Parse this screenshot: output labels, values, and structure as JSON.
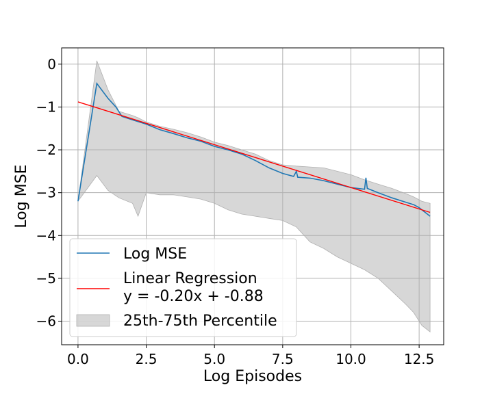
{
  "chart_data": {
    "type": "line",
    "xlabel": "Log Episodes",
    "ylabel": "Log MSE",
    "xlim": [
      -0.6,
      13.4
    ],
    "ylim": [
      -6.55,
      0.38
    ],
    "xticks": [
      0.0,
      2.5,
      5.0,
      7.5,
      10.0,
      12.5
    ],
    "xtick_labels": [
      "0.0",
      "2.5",
      "5.0",
      "7.5",
      "10.0",
      "12.5"
    ],
    "yticks": [
      0,
      -1,
      -2,
      -3,
      -4,
      -5,
      -6
    ],
    "ytick_labels": [
      "0",
      "−1",
      "−2",
      "−3",
      "−4",
      "−5",
      "−6"
    ],
    "grid": true,
    "legend_position": "lower-left",
    "series": [
      {
        "name": "Log MSE",
        "color": "#1f77b4",
        "x": [
          0.0,
          0.69,
          1.1,
          1.39,
          1.61,
          2.0,
          2.5,
          3.0,
          3.5,
          4.0,
          4.5,
          5.0,
          5.5,
          6.0,
          6.5,
          7.0,
          7.5,
          7.9,
          8.0,
          8.05,
          8.5,
          9.0,
          9.5,
          10.0,
          10.5,
          10.55,
          10.6,
          11.0,
          11.5,
          12.0,
          12.3,
          12.5,
          12.9
        ],
        "y": [
          -3.2,
          -0.45,
          -0.8,
          -1.0,
          -1.22,
          -1.3,
          -1.4,
          -1.53,
          -1.62,
          -1.72,
          -1.8,
          -1.92,
          -2.0,
          -2.1,
          -2.25,
          -2.42,
          -2.55,
          -2.62,
          -2.5,
          -2.64,
          -2.66,
          -2.72,
          -2.8,
          -2.88,
          -2.92,
          -2.65,
          -2.9,
          -3.0,
          -3.12,
          -3.22,
          -3.28,
          -3.35,
          -3.55
        ]
      },
      {
        "name": "Linear Regression\ny = -0.20x + -0.88",
        "color": "#ff0000",
        "slope": -0.2,
        "intercept": -0.88,
        "x_range": [
          0.0,
          12.9
        ]
      }
    ],
    "band": {
      "name": "25th-75th Percentile",
      "color": "#b0b0b0",
      "x": [
        0.0,
        0.69,
        1.1,
        1.5,
        2.0,
        2.2,
        2.5,
        3.0,
        3.5,
        4.0,
        4.5,
        5.0,
        5.5,
        6.0,
        6.5,
        7.0,
        7.5,
        8.0,
        8.5,
        9.0,
        9.5,
        10.0,
        10.5,
        11.0,
        11.5,
        12.0,
        12.3,
        12.6,
        12.9
      ],
      "upper": [
        -3.2,
        0.08,
        -0.6,
        -1.1,
        -1.2,
        -1.25,
        -1.35,
        -1.45,
        -1.52,
        -1.6,
        -1.7,
        -1.82,
        -1.9,
        -2.0,
        -2.1,
        -2.25,
        -2.35,
        -2.38,
        -2.4,
        -2.42,
        -2.5,
        -2.58,
        -2.7,
        -2.8,
        -2.9,
        -3.02,
        -3.1,
        -3.2,
        -3.25
      ],
      "lower": [
        -3.2,
        -2.6,
        -2.95,
        -3.12,
        -3.25,
        -3.55,
        -3.0,
        -3.05,
        -3.05,
        -3.1,
        -3.15,
        -3.25,
        -3.4,
        -3.5,
        -3.55,
        -3.6,
        -3.65,
        -3.8,
        -4.15,
        -4.3,
        -4.5,
        -4.65,
        -4.8,
        -5.0,
        -5.3,
        -5.6,
        -5.8,
        -6.1,
        -6.25
      ]
    }
  }
}
